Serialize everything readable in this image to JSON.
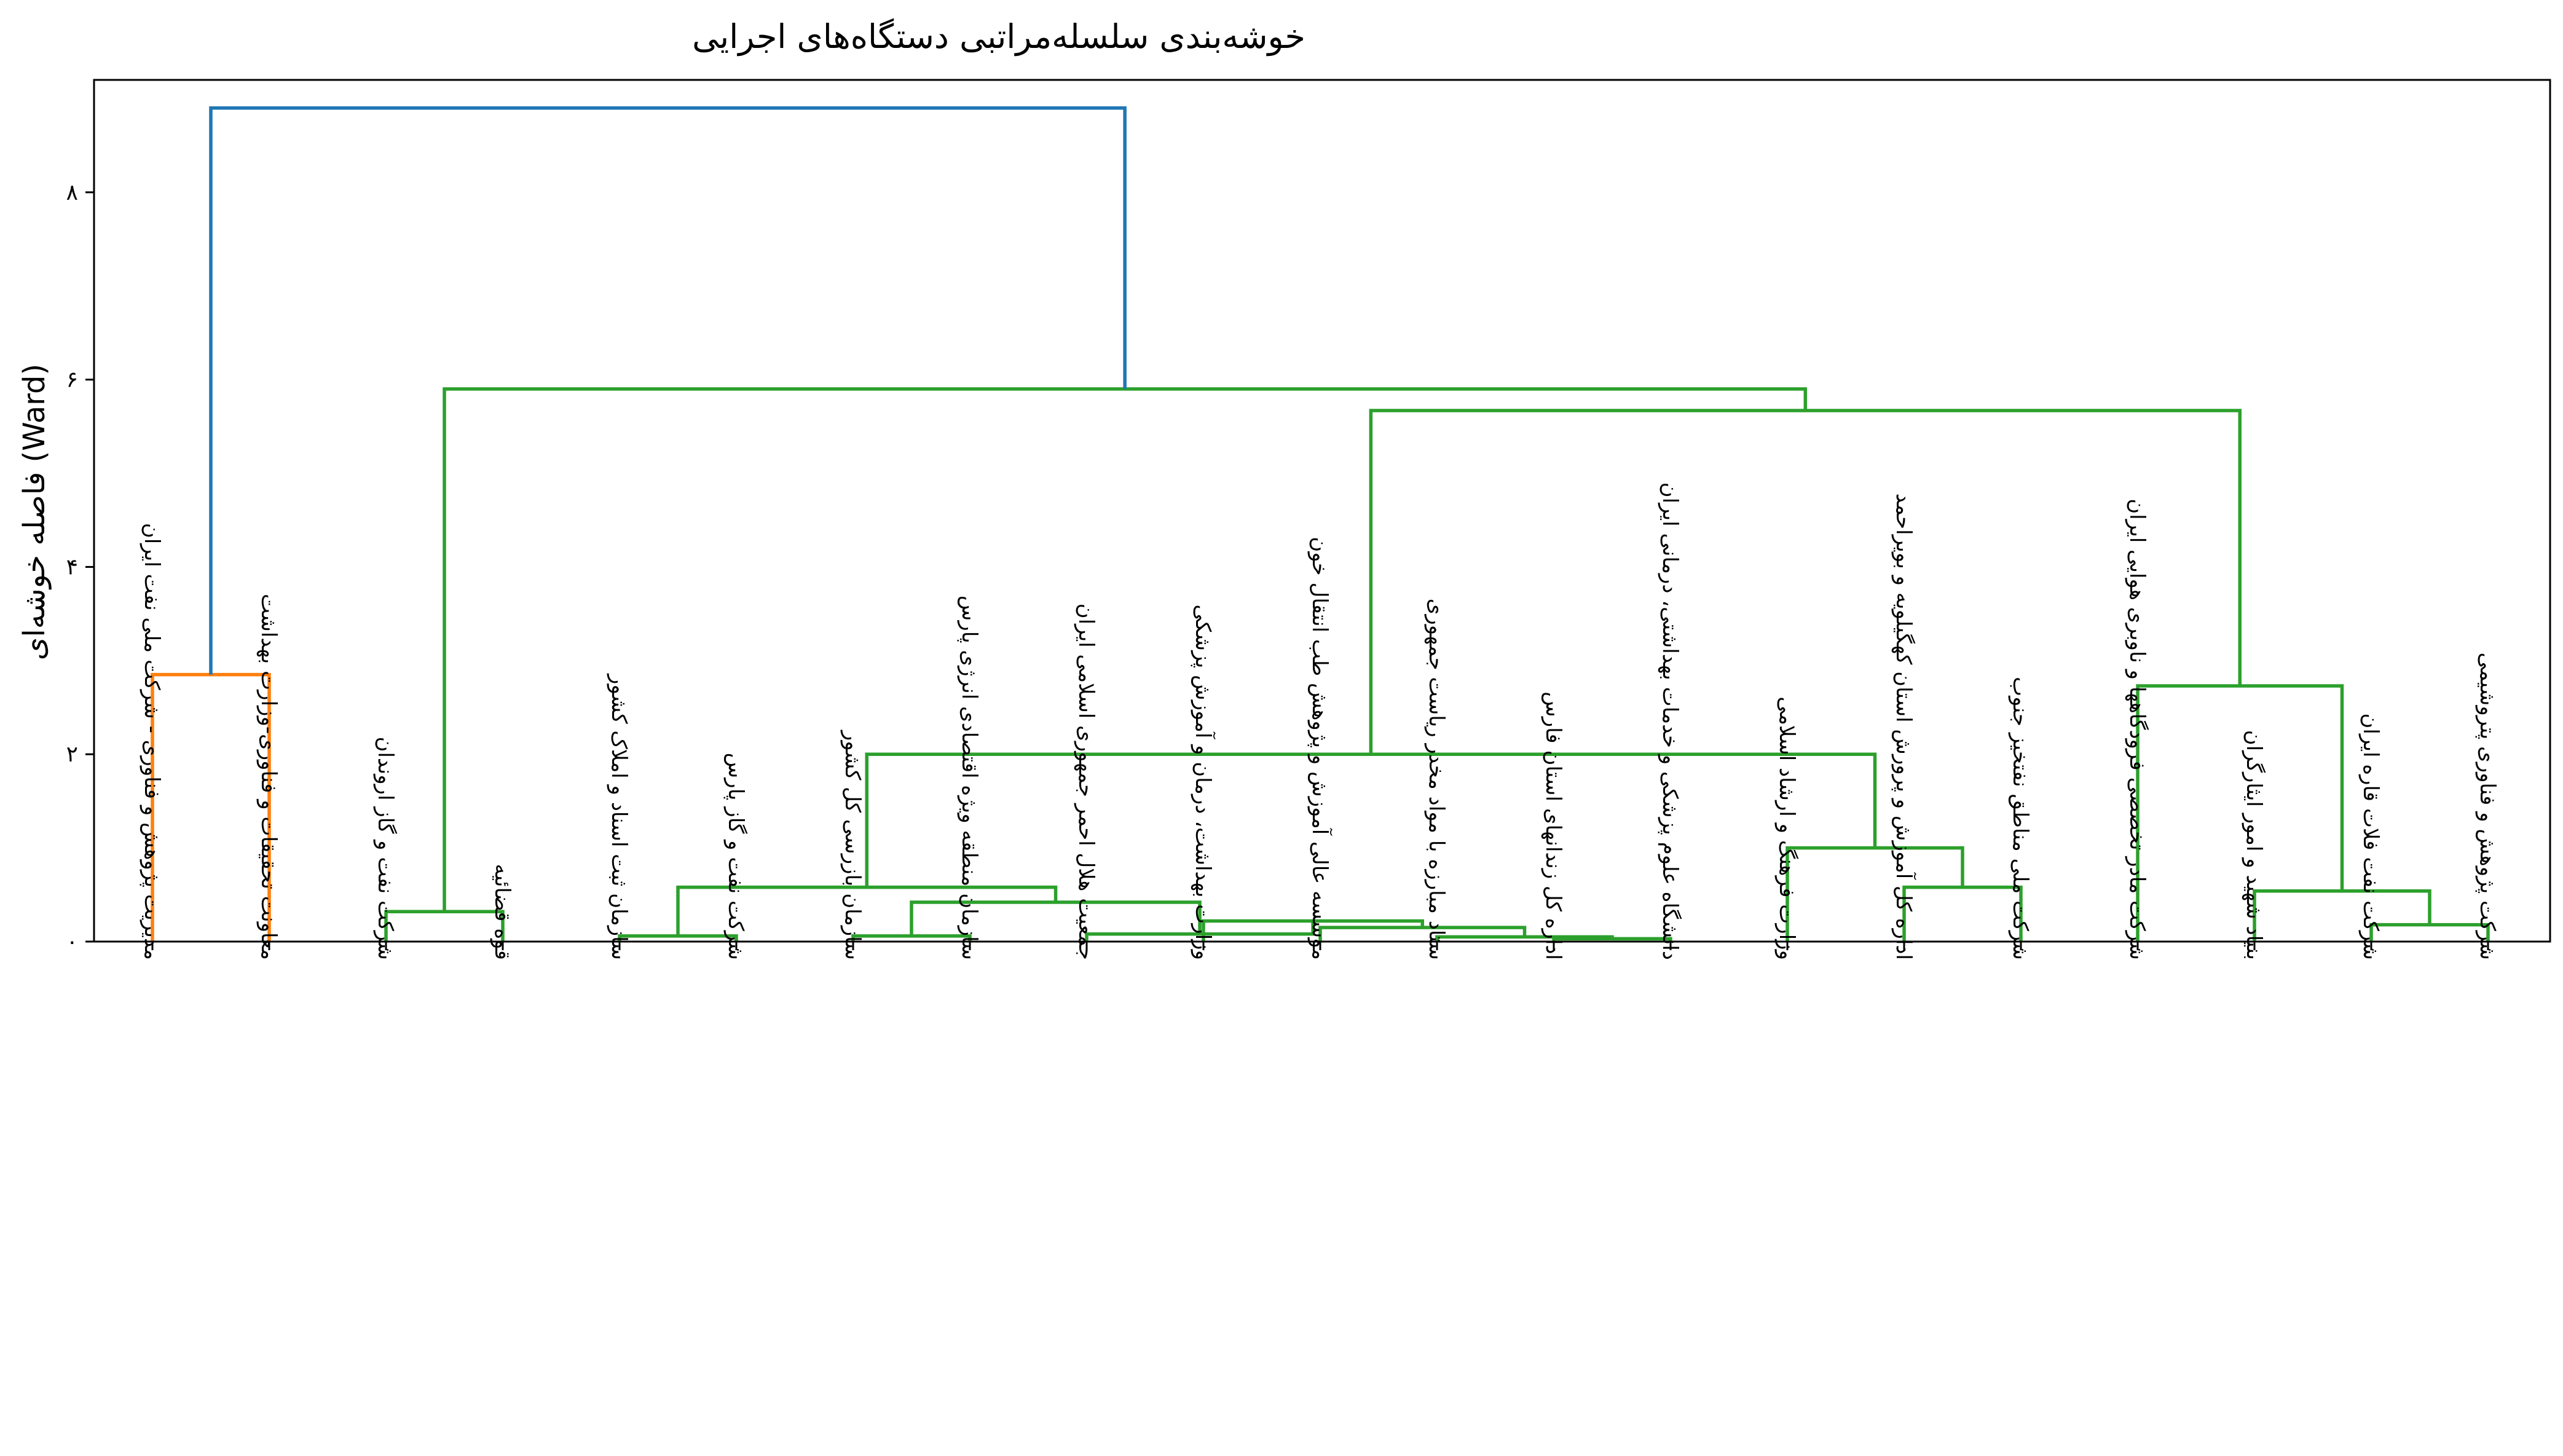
{
  "chart_data": {
    "type": "dendrogram",
    "title": "خوشه‌بندی سلسله‌مراتبی دستگاه‌های اجرایی",
    "xlabel": "",
    "ylabel": "فاصله خوشه‌ای (Ward)",
    "ylim": [
      0,
      9.2
    ],
    "yticks": [
      {
        "value": 0,
        "label": "۰"
      },
      {
        "value": 2,
        "label": "۲"
      },
      {
        "value": 4,
        "label": "۴"
      },
      {
        "value": 6,
        "label": "۶"
      },
      {
        "value": 8,
        "label": "۸"
      }
    ],
    "grid": false,
    "colors": {
      "blue": "#1f77b4",
      "orange": "#ff7f0e",
      "green": "#2ca02c"
    },
    "leaves": [
      "مدیریت پژوهش و فناوری - شرکت ملی نفت ایران",
      "معاونت تحقیقات و فناوری-وزارت بهداشت",
      "شرکت نفت و گاز اروندان",
      "قوه قضائیه",
      "سازمان ثبت اسناد و املاک کشور",
      "شرکت نفت و گاز پارس",
      "سازمان بازرسی کل کشور",
      "سازمان منطقه ویژه اقتصادی انرژی پارس",
      "جمعیت هلال احمر جمهوری اسلامی ایران",
      "وزارت بهداشت، درمان و آموزش پزشکی",
      "موسسه عالی آموزش و پژوهش طب انتقال خون",
      "ستاد مبارزه با مواد مخدر ریاست جمهوری",
      "اداره کل زندانهای استان فارس",
      "دانشگاه علوم پزشکی و خدمات بهداشتی، درمانی ایران",
      "وزارت فرهنگ و ارشاد اسلامی",
      "اداره کل آموزش و پرورش استان کهگیلویه و بویراحمد",
      "شرکت ملی مناطق نفتخیز جنوب",
      "شرکت مادر تخصصی فرودگاهها و ناوبری هوایی ایران",
      "بنیاد شهید و امور ایثارگران",
      "شرکت نفت فلات قاره ایران",
      "شرکت پژوهش و فناوری پتروشیمی"
    ],
    "merges": [
      {
        "left": 0,
        "right": 1,
        "height": 2.85,
        "color": "orange"
      },
      {
        "left": 2,
        "right": 3,
        "height": 0.32,
        "color": "green"
      },
      {
        "left": 4,
        "right": 5,
        "height": 0.06,
        "color": "green"
      },
      {
        "left": 6,
        "right": 7,
        "height": 0.06,
        "color": "green"
      },
      {
        "left": 12,
        "right": 13,
        "height": 0.03,
        "color": "green"
      },
      {
        "left": 11,
        "right": "m4",
        "height": 0.05,
        "color": "green"
      },
      {
        "left": 10,
        "right": "m5",
        "height": 0.15,
        "color": "green"
      },
      {
        "left": 9,
        "right": "m6",
        "height": 0.22,
        "color": "green"
      },
      {
        "left": 8,
        "right": "m7",
        "height": 0.08,
        "color": "green"
      },
      {
        "left": "m3",
        "right": "m8",
        "height": 0.42,
        "color": "green"
      },
      {
        "left": "m2",
        "right": "m9",
        "height": 0.58,
        "color": "green"
      },
      {
        "left": 15,
        "right": 16,
        "height": 0.58,
        "color": "green"
      },
      {
        "left": 14,
        "right": "m11",
        "height": 1.0,
        "color": "green"
      },
      {
        "left": "m10",
        "right": "m12",
        "height": 2.0,
        "color": "green"
      },
      {
        "left": 19,
        "right": 20,
        "height": 0.18,
        "color": "green"
      },
      {
        "left": 18,
        "right": "m14",
        "height": 0.54,
        "color": "green"
      },
      {
        "left": 17,
        "right": "m15",
        "height": 2.73,
        "color": "green"
      },
      {
        "left": "m13",
        "right": "m16",
        "height": 5.67,
        "color": "green"
      },
      {
        "left": "m1",
        "right": "m17",
        "height": 5.9,
        "color": "green"
      },
      {
        "left": "m0",
        "right": "m18",
        "height": 8.9,
        "color": "blue"
      }
    ]
  }
}
